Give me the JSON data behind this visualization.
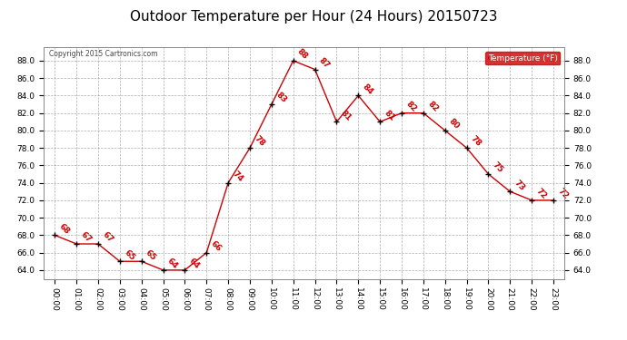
{
  "title": "Outdoor Temperature per Hour (24 Hours) 20150723",
  "copyright": "Copyright 2015 Cartronics.com",
  "legend_label": "Temperature (°F)",
  "hours": [
    "00:00",
    "01:00",
    "02:00",
    "03:00",
    "04:00",
    "05:00",
    "06:00",
    "07:00",
    "08:00",
    "09:00",
    "10:00",
    "11:00",
    "12:00",
    "13:00",
    "14:00",
    "15:00",
    "16:00",
    "17:00",
    "18:00",
    "19:00",
    "20:00",
    "21:00",
    "22:00",
    "23:00"
  ],
  "temperatures": [
    68,
    67,
    67,
    65,
    65,
    64,
    64,
    66,
    74,
    78,
    83,
    88,
    87,
    81,
    84,
    81,
    82,
    82,
    80,
    78,
    75,
    73,
    72,
    72
  ],
  "line_color": "#cc0000",
  "marker_color": "#000000",
  "label_color": "#cc0000",
  "bg_color": "#ffffff",
  "grid_color": "#999999",
  "ylim": [
    63.0,
    89.5
  ],
  "yticks": [
    64.0,
    66.0,
    68.0,
    70.0,
    72.0,
    74.0,
    76.0,
    78.0,
    80.0,
    82.0,
    84.0,
    86.0,
    88.0
  ],
  "title_fontsize": 11,
  "label_fontsize": 6.5,
  "tick_fontsize": 6.5,
  "legend_bg": "#cc0000",
  "legend_fg": "#ffffff"
}
